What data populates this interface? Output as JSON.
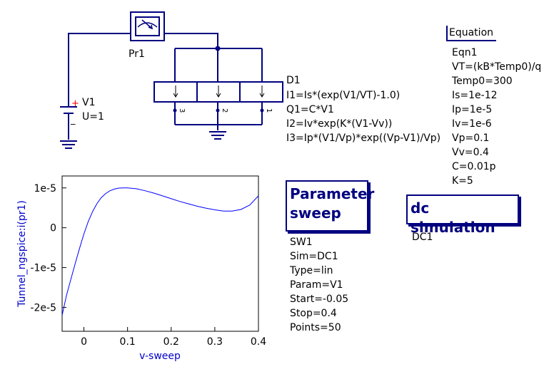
{
  "schematic": {
    "probe_label": "Pr1",
    "source_name": "V1",
    "source_value": "U=1",
    "source_plus": "+",
    "source_minus": "_",
    "diode_name": "D1",
    "diode_props": [
      "I1=Is*(exp(V1/VT)-1.0)",
      "Q1=C*V1",
      "I2=Iv*exp(K*(V1-Vv))",
      "I3=Ip*(V1/Vp)*exp((Vp-V1)/Vp)"
    ],
    "pin_labels": [
      "3",
      "2",
      "1"
    ]
  },
  "equation": {
    "title": "Equation",
    "lines": [
      "Eqn1",
      "VT=(kB*Temp0)/q",
      "Temp0=300",
      "Is=1e-12",
      "Ip=1e-5",
      "Iv=1e-6",
      "Vp=0.1",
      "Vv=0.4",
      "C=0.01p",
      "K=5"
    ]
  },
  "sweep": {
    "title_line1": "Parameter",
    "title_line2": "sweep",
    "lines": [
      "SW1",
      "Sim=DC1",
      "Type=lin",
      "Param=V1",
      "Start=-0.05",
      "Stop=0.4",
      "Points=50"
    ]
  },
  "dcsim": {
    "title": "dc simulation",
    "name": "DC1"
  },
  "chart_data": {
    "type": "line",
    "xlabel": "v-sweep",
    "ylabel": "Tunnel_ngspice:i(pr1)",
    "xlim": [
      -0.05,
      0.4
    ],
    "ylim": [
      -2.6e-05,
      1.3e-05
    ],
    "xticks": [
      0,
      0.1,
      0.2,
      0.3,
      0.4
    ],
    "xtick_labels": [
      "0",
      "0.1",
      "0.2",
      "0.3",
      "0.4"
    ],
    "yticks": [
      1e-05,
      0,
      -1e-05,
      -2e-05
    ],
    "ytick_labels": [
      "1e-5",
      "0",
      "-1e-5",
      "-2e-5"
    ],
    "color": "#0000ff",
    "series": [
      {
        "x": [
          -0.05,
          -0.04,
          -0.03,
          -0.02,
          -0.01,
          0.0,
          0.01,
          0.02,
          0.03,
          0.04,
          0.05,
          0.06,
          0.07,
          0.08,
          0.09,
          0.1,
          0.12,
          0.14,
          0.16,
          0.18,
          0.2,
          0.22,
          0.24,
          0.26,
          0.28,
          0.3,
          0.32,
          0.34,
          0.36,
          0.38,
          0.4
        ],
        "y": [
          -2.2e-05,
          -1.7e-05,
          -1.3e-05,
          -9e-06,
          -5.2e-06,
          -1.5e-06,
          1.6e-06,
          4.1e-06,
          6.1e-06,
          7.6e-06,
          8.6e-06,
          9.3e-06,
          9.7e-06,
          9.95e-06,
          1e-05,
          1e-05,
          9.8e-06,
          9.3e-06,
          8.7e-06,
          8e-06,
          7.3e-06,
          6.6e-06,
          6e-06,
          5.4e-06,
          4.9e-06,
          4.5e-06,
          4.2e-06,
          4.2e-06,
          4.6e-06,
          5.7e-06,
          8e-06
        ]
      }
    ]
  }
}
